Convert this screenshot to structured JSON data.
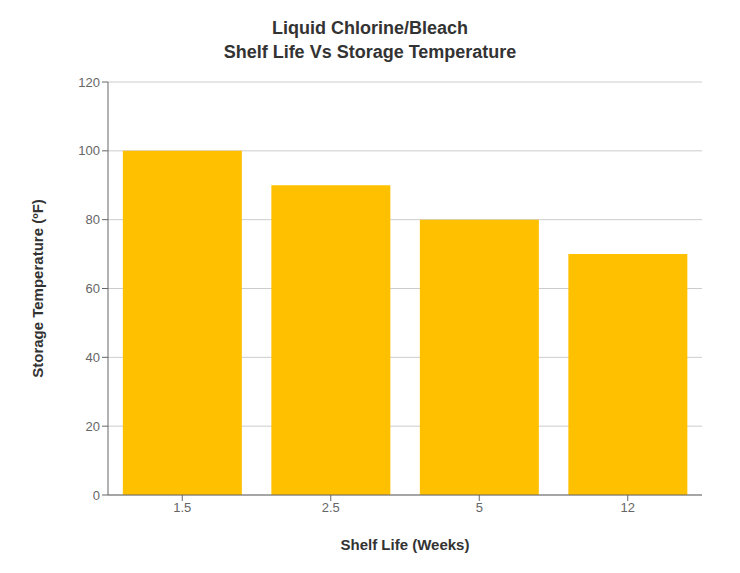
{
  "chart_data": {
    "type": "bar",
    "title": "Liquid Chlorine/Bleach",
    "subtitle": "Shelf Life Vs Storage Temperature",
    "xlabel": "Shelf Life (Weeks)",
    "ylabel": "Storage Temperature (ºF)",
    "categories": [
      "1.5",
      "2.5",
      "5",
      "12"
    ],
    "values": [
      100,
      90,
      80,
      70
    ],
    "color": "#FFC000",
    "ylim": [
      0,
      120
    ],
    "yticks": [
      0,
      20,
      40,
      60,
      80,
      100,
      120
    ],
    "grid": true
  }
}
